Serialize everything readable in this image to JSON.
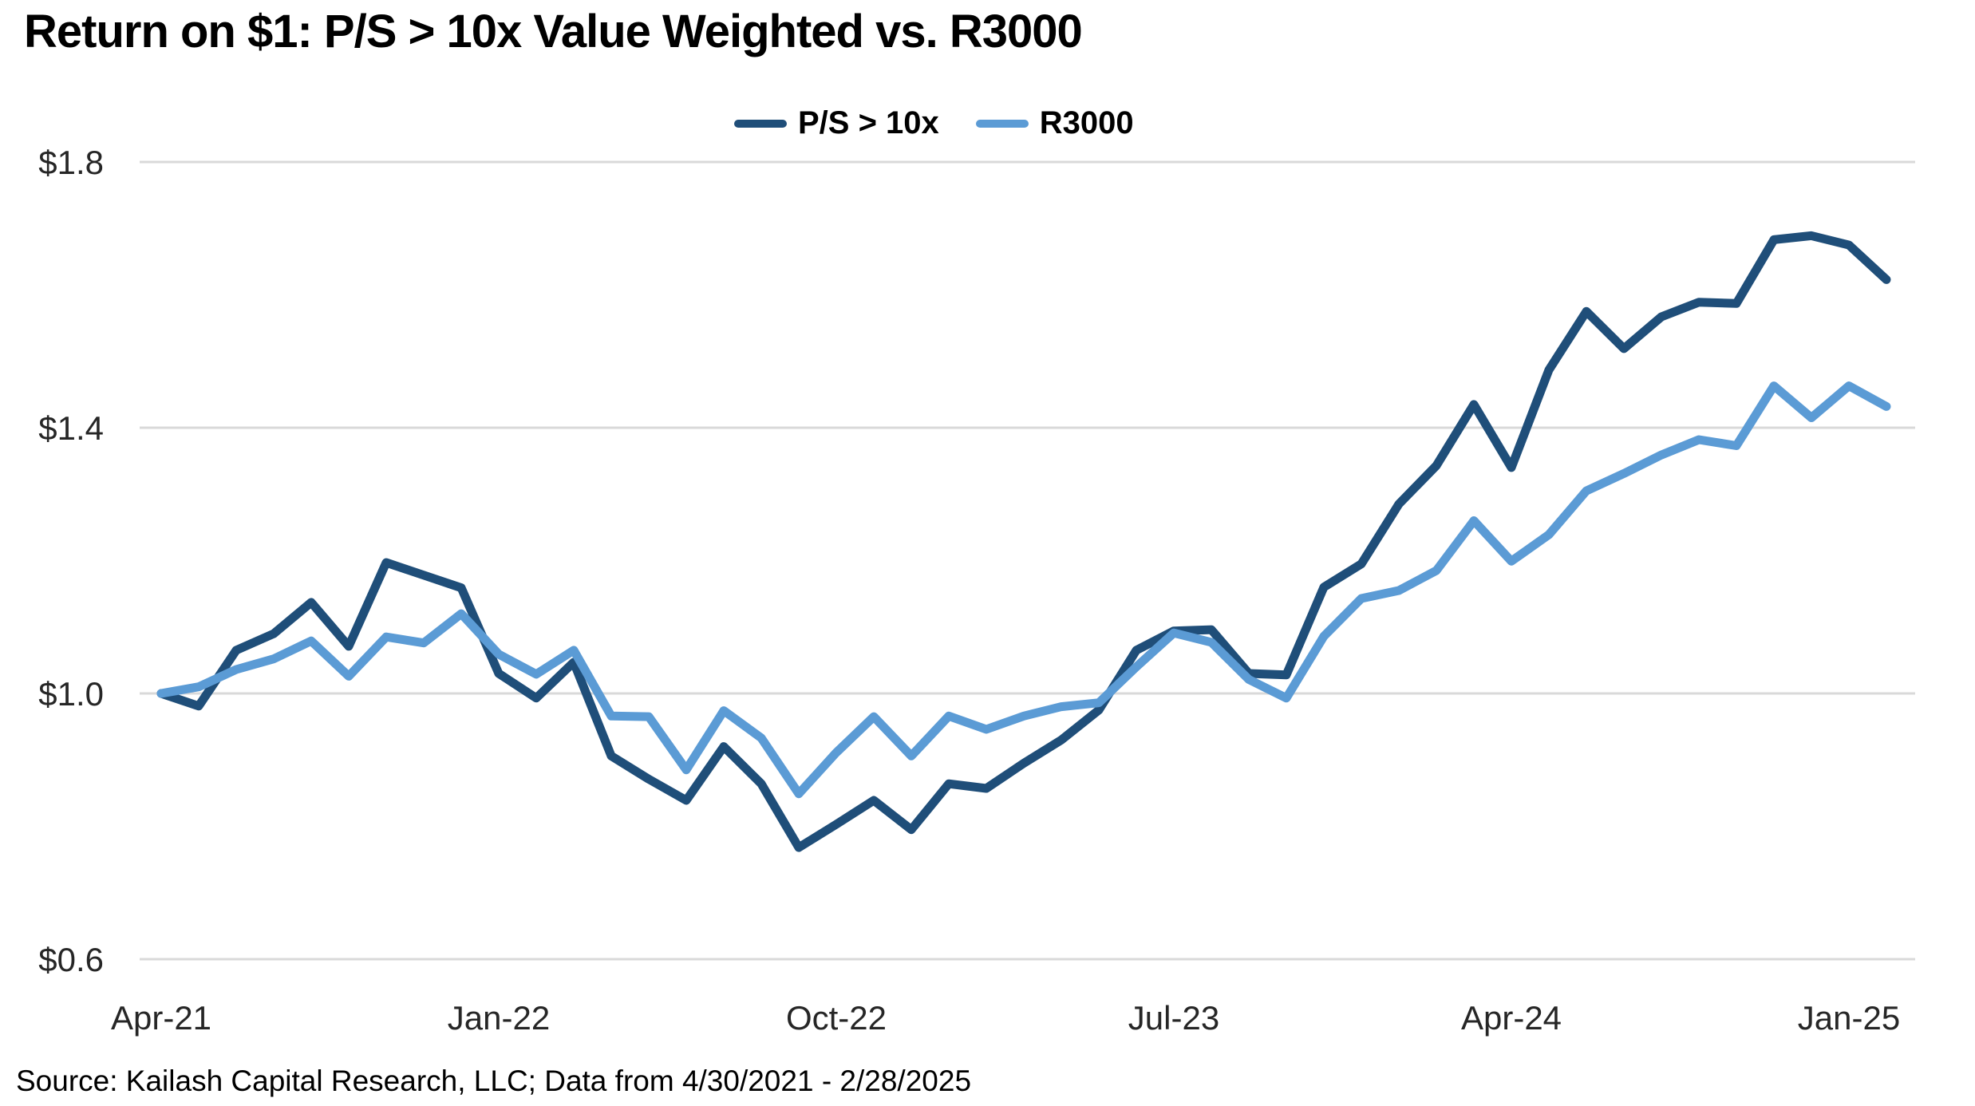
{
  "title": "Return on $1: P/S > 10x Value Weighted vs. R3000",
  "source": "Source: Kailash Capital Research, LLC; Data from 4/30/2021 - 2/28/2025",
  "colors": {
    "ps10x_line": "#1f4e79",
    "r3000_line": "#5b9bd5",
    "gridline": "#d9d9d9",
    "tick_text": "#262626",
    "background": "#ffffff"
  },
  "chart_data": {
    "type": "line",
    "title": "Return on $1: P/S > 10x Value Weighted vs. R3000",
    "xlabel": "",
    "ylabel": "Return on $1",
    "ylim": [
      0.6,
      1.8
    ],
    "grid": "horizontal",
    "legend_position": "top-center",
    "y_ticks": [
      {
        "value": 1.8,
        "label": "$1.8"
      },
      {
        "value": 1.4,
        "label": "$1.4"
      },
      {
        "value": 1.0,
        "label": "$1.0"
      },
      {
        "value": 0.6,
        "label": "$0.6"
      }
    ],
    "x_tick_marks": [
      {
        "index": 0,
        "label": "Apr-21"
      },
      {
        "index": 9,
        "label": "Jan-22"
      },
      {
        "index": 18,
        "label": "Oct-22"
      },
      {
        "index": 27,
        "label": "Jul-23"
      },
      {
        "index": 36,
        "label": "Apr-24"
      },
      {
        "index": 45,
        "label": "Jan-25"
      }
    ],
    "categories": [
      "Apr-21",
      "May-21",
      "Jun-21",
      "Jul-21",
      "Aug-21",
      "Sep-21",
      "Oct-21",
      "Nov-21",
      "Dec-21",
      "Jan-22",
      "Feb-22",
      "Mar-22",
      "Apr-22",
      "May-22",
      "Jun-22",
      "Jul-22",
      "Aug-22",
      "Sep-22",
      "Oct-22",
      "Nov-22",
      "Dec-22",
      "Jan-23",
      "Feb-23",
      "Mar-23",
      "Apr-23",
      "May-23",
      "Jun-23",
      "Jul-23",
      "Aug-23",
      "Sep-23",
      "Oct-23",
      "Nov-23",
      "Dec-23",
      "Jan-24",
      "Feb-24",
      "Mar-24",
      "Apr-24",
      "May-24",
      "Jun-24",
      "Jul-24",
      "Aug-24",
      "Sep-24",
      "Oct-24",
      "Nov-24",
      "Dec-24",
      "Jan-25",
      "Feb-25"
    ],
    "series": [
      {
        "name": "P/S > 10x",
        "color": "#1f4e79",
        "values": [
          1.0,
          0.981,
          1.065,
          1.09,
          1.137,
          1.071,
          1.197,
          1.178,
          1.159,
          1.03,
          0.993,
          1.047,
          0.906,
          0.871,
          0.839,
          0.92,
          0.864,
          0.768,
          0.803,
          0.839,
          0.795,
          0.864,
          0.857,
          0.895,
          0.93,
          0.975,
          1.065,
          1.094,
          1.096,
          1.03,
          1.028,
          1.16,
          1.195,
          1.285,
          1.343,
          1.435,
          1.34,
          1.487,
          1.575,
          1.519,
          1.567,
          1.589,
          1.587,
          1.683,
          1.689,
          1.675,
          1.623
        ]
      },
      {
        "name": "R3000",
        "color": "#5b9bd5",
        "values": [
          1.0,
          1.01,
          1.036,
          1.052,
          1.079,
          1.026,
          1.085,
          1.076,
          1.12,
          1.059,
          1.029,
          1.065,
          0.966,
          0.965,
          0.885,
          0.974,
          0.933,
          0.849,
          0.911,
          0.965,
          0.906,
          0.966,
          0.946,
          0.966,
          0.98,
          0.986,
          1.04,
          1.091,
          1.077,
          1.021,
          0.993,
          1.086,
          1.143,
          1.155,
          1.185,
          1.26,
          1.199,
          1.239,
          1.305,
          1.331,
          1.359,
          1.382,
          1.373,
          1.463,
          1.415,
          1.463,
          1.432
        ]
      }
    ]
  }
}
